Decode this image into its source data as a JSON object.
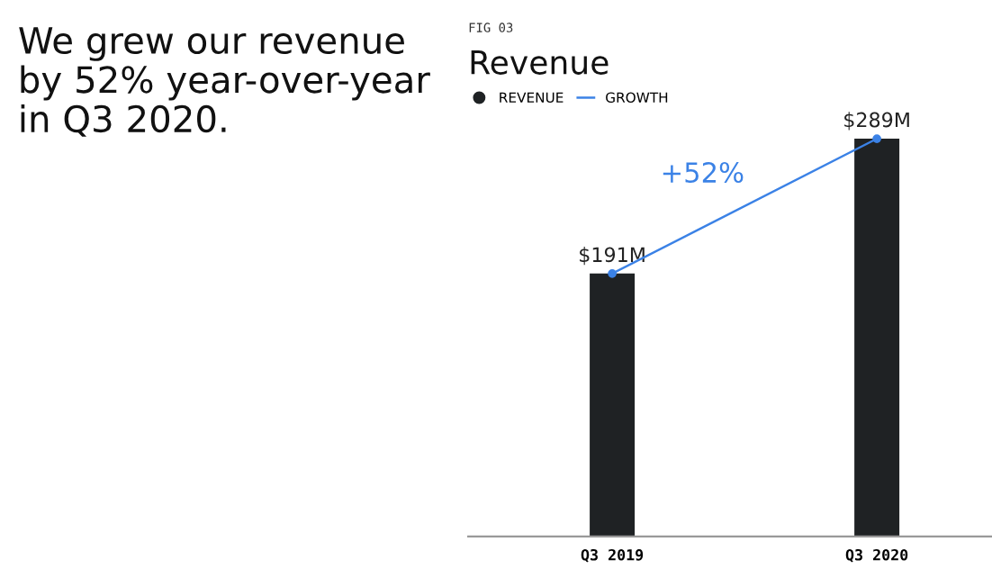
{
  "chart_data": {
    "type": "bar",
    "title": "We grew our revenue\nby 52% year-over-year\nin Q3 2020.",
    "subtitle": "Revenue",
    "annotations": [
      "FIG 03",
      "+52%"
    ],
    "categories": [
      "Q3 2019",
      "Q3 2020"
    ],
    "series": [
      {
        "name": "REVENUE",
        "color": "#1f2224",
        "values": [
          191,
          289
        ],
        "value_labels": [
          "$191M",
          "$289M"
        ]
      },
      {
        "name": "GROWTH",
        "type": "line",
        "color": "#3b82e6",
        "values": [
          191,
          289
        ],
        "marker": "circle"
      }
    ],
    "legend": "top left",
    "grid": false
  }
}
